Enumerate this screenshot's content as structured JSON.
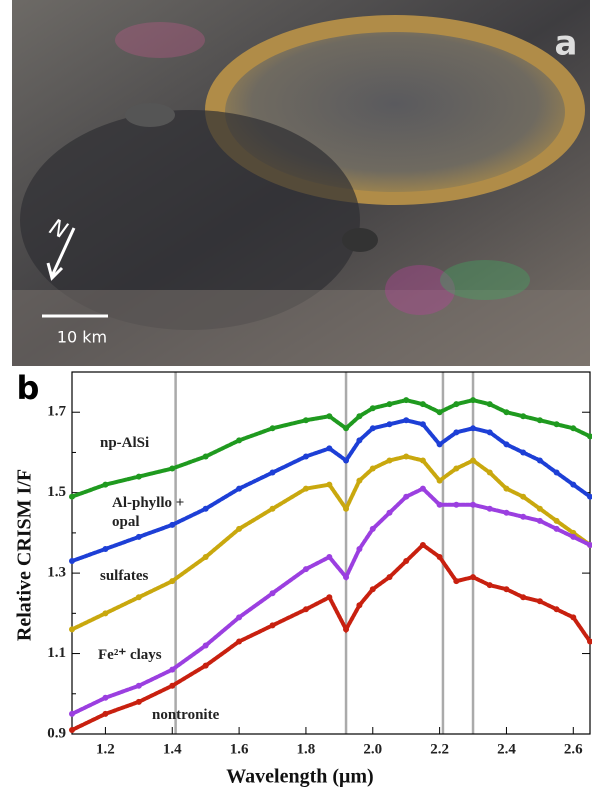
{
  "panel_a": {
    "label": "a",
    "north": "N",
    "scale": "10 km"
  },
  "chart_data": {
    "type": "scatter",
    "panel_label": "b",
    "x_label": "Wavelength (μm)",
    "y_label": "Relative CRISM I/F",
    "x": [
      1.1,
      1.2,
      1.3,
      1.4,
      1.5,
      1.6,
      1.7,
      1.8,
      1.87,
      1.92,
      1.96,
      2.0,
      2.05,
      2.1,
      2.15,
      2.2,
      2.25,
      2.3,
      2.35,
      2.4,
      2.45,
      2.5,
      2.55,
      2.6,
      2.65
    ],
    "series": [
      {
        "name": "np-AlSi",
        "color": "#1f9a1f",
        "values": [
          1.49,
          1.52,
          1.54,
          1.56,
          1.59,
          1.63,
          1.66,
          1.68,
          1.69,
          1.66,
          1.69,
          1.71,
          1.72,
          1.73,
          1.72,
          1.7,
          1.72,
          1.73,
          1.72,
          1.7,
          1.69,
          1.68,
          1.67,
          1.66,
          1.64
        ]
      },
      {
        "name": "Al-phyllo + opal",
        "color": "#1d3fd6",
        "values": [
          1.33,
          1.36,
          1.39,
          1.42,
          1.46,
          1.51,
          1.55,
          1.59,
          1.61,
          1.58,
          1.63,
          1.66,
          1.67,
          1.68,
          1.67,
          1.62,
          1.65,
          1.66,
          1.65,
          1.62,
          1.6,
          1.58,
          1.55,
          1.52,
          1.49
        ]
      },
      {
        "name": "sulfates",
        "color": "#c9a80e",
        "values": [
          1.16,
          1.2,
          1.24,
          1.28,
          1.34,
          1.41,
          1.46,
          1.51,
          1.52,
          1.46,
          1.53,
          1.56,
          1.58,
          1.59,
          1.58,
          1.53,
          1.56,
          1.58,
          1.55,
          1.51,
          1.49,
          1.46,
          1.43,
          1.4,
          1.37
        ]
      },
      {
        "name": "Fe²⁺ clays",
        "color": "#9b3fe0",
        "values": [
          0.95,
          0.99,
          1.02,
          1.06,
          1.12,
          1.19,
          1.25,
          1.31,
          1.34,
          1.29,
          1.36,
          1.41,
          1.45,
          1.49,
          1.51,
          1.47,
          1.47,
          1.47,
          1.46,
          1.45,
          1.44,
          1.43,
          1.41,
          1.39,
          1.37
        ]
      },
      {
        "name": "nontronite",
        "color": "#c8200f",
        "values": [
          0.91,
          0.95,
          0.98,
          1.02,
          1.07,
          1.13,
          1.17,
          1.21,
          1.24,
          1.16,
          1.22,
          1.26,
          1.29,
          1.33,
          1.37,
          1.34,
          1.28,
          1.29,
          1.27,
          1.26,
          1.24,
          1.23,
          1.21,
          1.19,
          1.13
        ]
      }
    ],
    "reference_lines": [
      1.41,
      1.92,
      2.21,
      2.3
    ],
    "xlim": [
      1.1,
      2.65
    ],
    "ylim": [
      0.9,
      1.8
    ],
    "xticks": [
      1.2,
      1.4,
      1.6,
      1.8,
      {
        "value": 2,
        "label": "2.0"
      },
      2.2,
      2.4,
      2.6
    ],
    "yticks": [
      0.9,
      1.1,
      1.3,
      1.5,
      1.7
    ],
    "yminor": [
      1.0,
      1.2,
      1.4,
      1.6
    ]
  }
}
